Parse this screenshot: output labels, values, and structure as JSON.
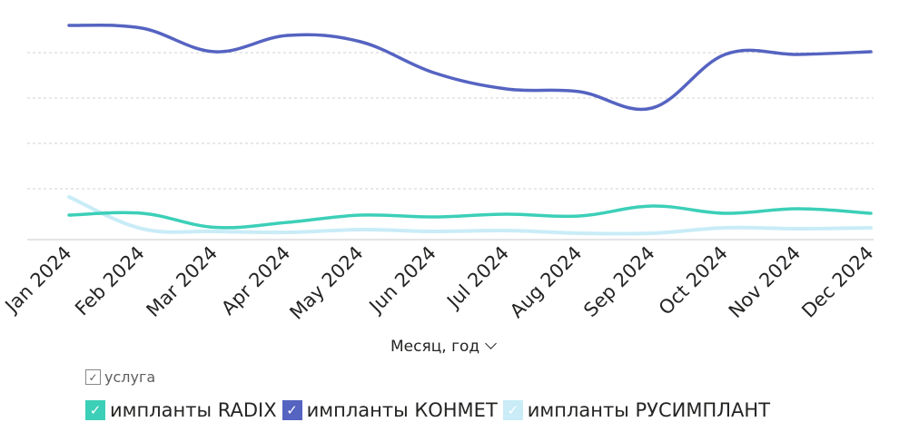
{
  "chart_data": {
    "type": "line",
    "categories": [
      "Jan 2024",
      "Feb 2024",
      "Mar 2024",
      "Apr 2024",
      "May 2024",
      "Jun 2024",
      "Jul 2024",
      "Aug 2024",
      "Sep 2024",
      "Oct 2024",
      "Nov 2024",
      "Dec 2024"
    ],
    "series": [
      {
        "name": "импланты RADIX",
        "color": "#3ccfb8",
        "values": [
          4.2,
          4.6,
          1.5,
          2.6,
          4.2,
          3.8,
          4.4,
          4.0,
          6.2,
          4.6,
          5.6,
          4.6
        ]
      },
      {
        "name": "импланты КОНМЕТ",
        "color": "#5563c1",
        "values": [
          46,
          45.4,
          40.2,
          43.8,
          42.4,
          35.6,
          32,
          31.4,
          27.8,
          39.6,
          39.6,
          40.2
        ]
      },
      {
        "name": "импланты РУСИМПЛАНТ",
        "color": "#c9ecf7",
        "values": [
          8.2,
          1.2,
          0.6,
          0.4,
          1.0,
          0.6,
          0.8,
          0.2,
          0.2,
          1.4,
          1.2,
          1.4
        ]
      }
    ],
    "ylim": [
      0,
      50
    ],
    "grid": true,
    "legend_placement": "bottom-left",
    "xlabel": "Месяц, год",
    "legend_title": "услуга"
  },
  "icons": {
    "checkmark": "✓",
    "chevron": "chevron-down-icon"
  }
}
